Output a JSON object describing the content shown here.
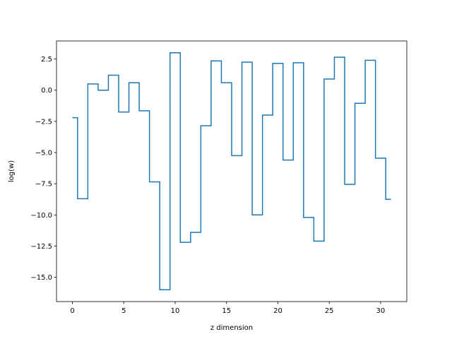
{
  "chart_data": {
    "type": "line",
    "step": "mid",
    "title": "",
    "xlabel": "z dimension",
    "ylabel": "log(w)",
    "xlim": [
      -1.55,
      32.55
    ],
    "ylim": [
      -16.95,
      3.95
    ],
    "x_ticks": [
      0,
      5,
      10,
      15,
      20,
      25,
      30
    ],
    "x_tick_labels": [
      "0",
      "5",
      "10",
      "15",
      "20",
      "25",
      "30"
    ],
    "y_ticks": [
      -15.0,
      -12.5,
      -10.0,
      -7.5,
      -5.0,
      -2.5,
      0.0,
      2.5
    ],
    "y_tick_labels": [
      "−15.0",
      "−12.5",
      "−10.0",
      "−7.5",
      "−5.0",
      "−2.5",
      "0.0",
      "2.5"
    ],
    "grid": false,
    "legend": "none",
    "series": [
      {
        "color": "#1f77b4",
        "x": [
          0,
          1,
          2,
          3,
          4,
          5,
          6,
          7,
          8,
          9,
          10,
          11,
          12,
          13,
          14,
          15,
          16,
          17,
          18,
          19,
          20,
          21,
          22,
          23,
          24,
          25,
          26,
          27,
          28,
          29,
          30,
          31
        ],
        "y": [
          -2.2,
          -8.7,
          0.5,
          0.0,
          1.2,
          -1.75,
          0.6,
          -1.65,
          -7.35,
          -16.0,
          3.0,
          -12.2,
          -11.4,
          -2.85,
          2.35,
          0.6,
          -5.25,
          2.25,
          -10.0,
          -2.0,
          2.15,
          -5.6,
          2.2,
          -10.2,
          -12.1,
          0.9,
          2.65,
          -7.55,
          -1.05,
          2.4,
          -5.45,
          -8.75
        ]
      }
    ]
  }
}
